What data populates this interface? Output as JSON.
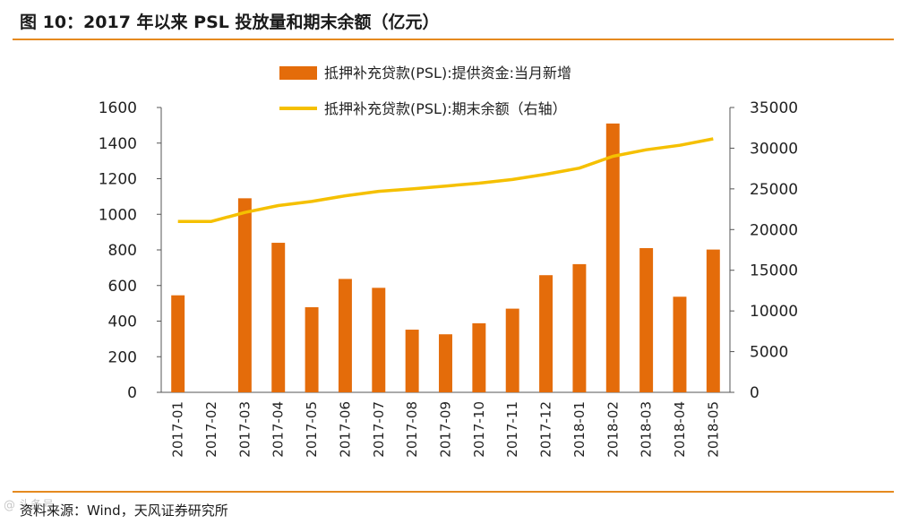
{
  "header": {
    "title": "图 10：2017 年以来 PSL 投放量和期末余额（亿元）"
  },
  "footer": {
    "source": "资料来源：Wind，天风证券研究所",
    "watermark": "@ 头条号"
  },
  "chart_data": {
    "type": "bar+line",
    "categories": [
      "2017-01",
      "2017-02",
      "2017-03",
      "2017-04",
      "2017-05",
      "2017-06",
      "2017-07",
      "2017-08",
      "2017-09",
      "2017-10",
      "2017-11",
      "2017-12",
      "2018-01",
      "2018-02",
      "2018-03",
      "2018-04",
      "2018-05"
    ],
    "series": [
      {
        "name": "抵押补充贷款(PSL):提供资金:当月新增",
        "kind": "bar",
        "axis": "left",
        "color": "#e46c0a",
        "values": [
          545,
          0,
          1090,
          840,
          478,
          637,
          587,
          352,
          326,
          388,
          470,
          658,
          720,
          1510,
          810,
          537,
          802
        ]
      },
      {
        "name": "抵押补充贷款(PSL):期末余额（右轴）",
        "kind": "line",
        "axis": "right",
        "color": "#f5c000",
        "values": [
          21000,
          21000,
          22100,
          22950,
          23450,
          24150,
          24700,
          25000,
          25350,
          25700,
          26150,
          26800,
          27550,
          29000,
          29800,
          30350,
          31150
        ]
      }
    ],
    "y_left": {
      "min": 0,
      "max": 1600,
      "ticks": [
        0,
        200,
        400,
        600,
        800,
        1000,
        1200,
        1400,
        1600
      ]
    },
    "y_right": {
      "min": 0,
      "max": 35000,
      "ticks": [
        0,
        5000,
        10000,
        15000,
        20000,
        25000,
        30000,
        35000
      ]
    },
    "legend_position": "top"
  }
}
